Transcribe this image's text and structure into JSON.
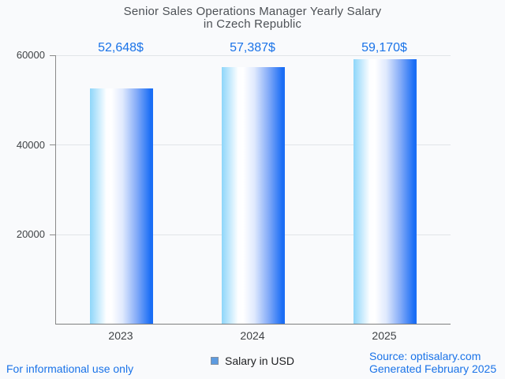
{
  "title": {
    "line1": "Senior Sales Operations Manager Yearly Salary",
    "line2": "in Czech Republic"
  },
  "chart_data": {
    "type": "bar",
    "categories": [
      "2023",
      "2024",
      "2025"
    ],
    "values": [
      52648,
      57387,
      59170
    ],
    "value_labels": [
      "52,648$",
      "57,387$",
      "59,170$"
    ],
    "series": [
      {
        "name": "Salary in USD",
        "values": [
          52648,
          57387,
          59170
        ]
      }
    ],
    "title": "Senior Sales Operations Manager Yearly Salary in Czech Republic",
    "xlabel": "",
    "ylabel": "",
    "ylim": [
      0,
      60000
    ],
    "yticks": [
      20000,
      40000,
      60000
    ],
    "ytick_labels": [
      "20000",
      "40000",
      "60000"
    ],
    "grid": true,
    "legend_position": "bottom"
  },
  "legend": {
    "label": "Salary in USD",
    "swatch_color": "#5d9be0"
  },
  "footer": {
    "disclaimer": "For informational use only",
    "source": "Source: optisalary.com",
    "generated": "Generated February 2025"
  },
  "colors": {
    "background": "#f9fafc",
    "accent_blue": "#1a73e8",
    "title_gray": "#4d5156",
    "axis_gray": "#8a8a8a",
    "grid_gray": "#e1e4e8",
    "tick_label_gray": "#3f4245",
    "bar_gradient_left": "#8ed6fa",
    "bar_gradient_mid": "#ffffff",
    "bar_gradient_right": "#1b6ef5"
  }
}
